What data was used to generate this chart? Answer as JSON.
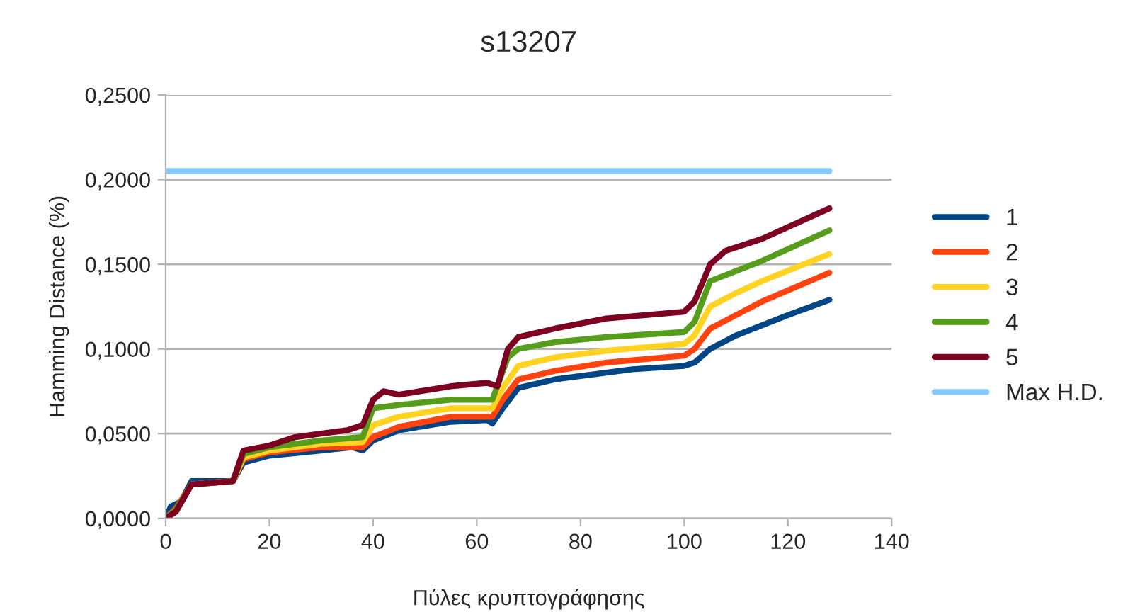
{
  "chart_data": {
    "type": "line",
    "title": "s13207",
    "xlabel": "Πύλες κρυπτογράφησης",
    "ylabel": "Hamming Distance (%)",
    "xlim": [
      0,
      140
    ],
    "xticks": [
      0,
      20,
      40,
      60,
      80,
      100,
      120,
      140
    ],
    "ylim": [
      0,
      0.25
    ],
    "yticks": [
      {
        "value": 0,
        "label": "0,0000"
      },
      {
        "value": 0.05,
        "label": "0,0500"
      },
      {
        "value": 0.1,
        "label": "0,1000"
      },
      {
        "value": 0.15,
        "label": "0,1500"
      },
      {
        "value": 0.2,
        "label": "0,2000"
      },
      {
        "value": 0.25,
        "label": "0,2500"
      }
    ],
    "grid": "y",
    "legend": "right",
    "marker": "none",
    "line_style": "solid",
    "series": [
      {
        "name": "1",
        "color": "#004586",
        "x": [
          0,
          1,
          3,
          5,
          13,
          15,
          20,
          30,
          36,
          38,
          40,
          45,
          55,
          62,
          63,
          65,
          68,
          75,
          85,
          90,
          100,
          102,
          105,
          110,
          120,
          128
        ],
        "values": [
          0,
          0.007,
          0.01,
          0.022,
          0.022,
          0.033,
          0.037,
          0.04,
          0.042,
          0.04,
          0.046,
          0.052,
          0.057,
          0.058,
          0.056,
          0.065,
          0.077,
          0.082,
          0.086,
          0.088,
          0.09,
          0.092,
          0.1,
          0.108,
          0.12,
          0.129
        ]
      },
      {
        "name": "2",
        "color": "#ff420e",
        "x": [
          0,
          2,
          5,
          13,
          15,
          20,
          30,
          38,
          40,
          45,
          55,
          63,
          65,
          68,
          75,
          85,
          100,
          102,
          105,
          110,
          115,
          128
        ],
        "values": [
          0,
          0.006,
          0.02,
          0.022,
          0.035,
          0.039,
          0.042,
          0.042,
          0.048,
          0.054,
          0.06,
          0.06,
          0.07,
          0.082,
          0.087,
          0.092,
          0.096,
          0.1,
          0.112,
          0.12,
          0.128,
          0.145
        ]
      },
      {
        "name": "3",
        "color": "#ffd320",
        "x": [
          5,
          13,
          15,
          20,
          30,
          38,
          40,
          45,
          55,
          63,
          65,
          68,
          75,
          85,
          100,
          102,
          105,
          110,
          115,
          128
        ],
        "values": [
          0.02,
          0.022,
          0.036,
          0.04,
          0.044,
          0.045,
          0.055,
          0.06,
          0.065,
          0.065,
          0.077,
          0.09,
          0.095,
          0.099,
          0.103,
          0.108,
          0.125,
          0.133,
          0.14,
          0.156
        ]
      },
      {
        "name": "4",
        "color": "#579d1c",
        "x": [
          0,
          2,
          5,
          13,
          15,
          20,
          30,
          38,
          40,
          45,
          55,
          63,
          66,
          68,
          75,
          85,
          100,
          102,
          105,
          110,
          115,
          128
        ],
        "values": [
          0,
          0.005,
          0.02,
          0.022,
          0.038,
          0.042,
          0.046,
          0.048,
          0.065,
          0.067,
          0.07,
          0.07,
          0.095,
          0.1,
          0.104,
          0.107,
          0.11,
          0.116,
          0.14,
          0.146,
          0.152,
          0.17
        ]
      },
      {
        "name": "5",
        "color": "#7e0021",
        "x": [
          0,
          2,
          5,
          13,
          15,
          20,
          25,
          30,
          35,
          38,
          40,
          42,
          45,
          55,
          62,
          64,
          66,
          68,
          75,
          85,
          100,
          102,
          105,
          108,
          115,
          128
        ],
        "values": [
          0,
          0.004,
          0.02,
          0.022,
          0.04,
          0.043,
          0.048,
          0.05,
          0.052,
          0.055,
          0.07,
          0.075,
          0.073,
          0.078,
          0.08,
          0.078,
          0.1,
          0.107,
          0.112,
          0.118,
          0.122,
          0.128,
          0.15,
          0.158,
          0.165,
          0.183
        ]
      },
      {
        "name": "Max H.D.",
        "color": "#83caff",
        "x": [
          0,
          128
        ],
        "values": [
          0.205,
          0.205
        ]
      }
    ]
  }
}
